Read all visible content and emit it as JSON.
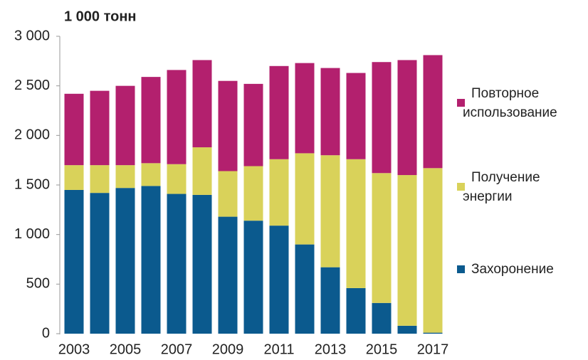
{
  "chart_data": {
    "type": "stacked_bar",
    "title": "1 000 тонн",
    "categories": [
      "2003",
      null,
      "2005",
      null,
      "2007",
      null,
      "2009",
      null,
      "2011",
      null,
      "2013",
      null,
      "2015",
      null,
      "2017"
    ],
    "series": [
      {
        "name": "Захоронение",
        "color": "#0b5a8e",
        "values": [
          1450,
          1420,
          1470,
          1490,
          1410,
          1400,
          1180,
          1140,
          1090,
          900,
          670,
          460,
          310,
          80,
          10
        ]
      },
      {
        "name": "Получение энергии",
        "color": "#d9d25a",
        "values": [
          250,
          280,
          230,
          230,
          300,
          480,
          460,
          550,
          670,
          920,
          1130,
          1300,
          1310,
          1520,
          1660
        ]
      },
      {
        "name": "Повторное использование",
        "color": "#b3206e",
        "values": [
          720,
          750,
          800,
          870,
          950,
          880,
          910,
          830,
          940,
          910,
          880,
          870,
          1120,
          1160,
          1140
        ]
      }
    ],
    "ylim": [
      0,
      3000
    ],
    "yticks": [
      0,
      500,
      {
        "value": 1000,
        "label": "1 000"
      },
      {
        "value": 1500,
        "label": "1 500"
      },
      {
        "value": 2000,
        "label": "2 000"
      },
      {
        "value": 2500,
        "label": "2 500"
      },
      {
        "value": 3000,
        "label": "3 000"
      }
    ],
    "grid": false,
    "legend": "right"
  }
}
